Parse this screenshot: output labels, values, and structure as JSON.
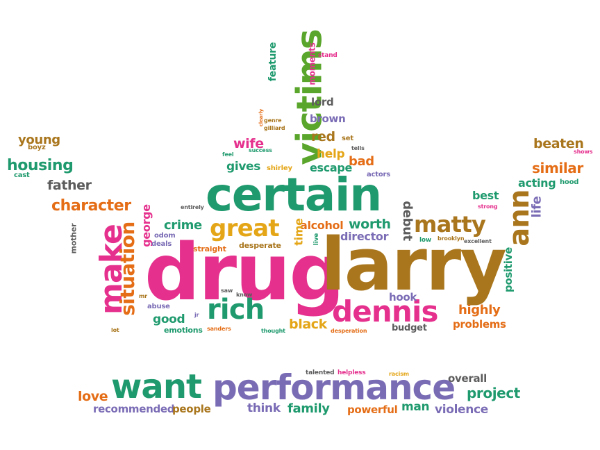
{
  "palette": {
    "pink": "#e5308d",
    "green": "#1f9a6e",
    "olive": "#a9761d",
    "gold": "#e4a516",
    "orange": "#e46d16",
    "purple": "#7a6bb5",
    "gray": "#5c5c5c",
    "lime": "#5aa52b"
  },
  "words": [
    {
      "text": "drug",
      "color": "pink"
    },
    {
      "text": "larry",
      "color": "olive"
    },
    {
      "text": "certain",
      "color": "green"
    },
    {
      "text": "performance",
      "color": "purple"
    },
    {
      "text": "want",
      "color": "green"
    },
    {
      "text": "victims",
      "color": "lime"
    },
    {
      "text": "dennis",
      "color": "pink"
    },
    {
      "text": "make",
      "color": "pink"
    },
    {
      "text": "matty",
      "color": "olive"
    },
    {
      "text": "great",
      "color": "gold"
    },
    {
      "text": "rich",
      "color": "green"
    },
    {
      "text": "situation",
      "color": "orange"
    },
    {
      "text": "ann",
      "color": "olive"
    },
    {
      "text": "character",
      "color": "orange"
    },
    {
      "text": "housing",
      "color": "green"
    },
    {
      "text": "father",
      "color": "gray"
    },
    {
      "text": "young",
      "color": "olive"
    },
    {
      "text": "beaten",
      "color": "olive"
    },
    {
      "text": "similar",
      "color": "orange"
    },
    {
      "text": "acting",
      "color": "green"
    },
    {
      "text": "best",
      "color": "green"
    },
    {
      "text": "life",
      "color": "purple"
    },
    {
      "text": "positive",
      "color": "green"
    },
    {
      "text": "highly",
      "color": "orange"
    },
    {
      "text": "problems",
      "color": "orange"
    },
    {
      "text": "hook",
      "color": "purple"
    },
    {
      "text": "budget",
      "color": "gray"
    },
    {
      "text": "black",
      "color": "gold"
    },
    {
      "text": "good",
      "color": "green"
    },
    {
      "text": "emotions",
      "color": "green"
    },
    {
      "text": "crime",
      "color": "green"
    },
    {
      "text": "george",
      "color": "pink"
    },
    {
      "text": "alcohol",
      "color": "orange"
    },
    {
      "text": "worth",
      "color": "green"
    },
    {
      "text": "director",
      "color": "purple"
    },
    {
      "text": "debut",
      "color": "gray"
    },
    {
      "text": "time",
      "color": "gold"
    },
    {
      "text": "gives",
      "color": "green"
    },
    {
      "text": "wife",
      "color": "pink"
    },
    {
      "text": "escape",
      "color": "green"
    },
    {
      "text": "help",
      "color": "gold"
    },
    {
      "text": "bad",
      "color": "orange"
    },
    {
      "text": "red",
      "color": "olive"
    },
    {
      "text": "brown",
      "color": "purple"
    },
    {
      "text": "lord",
      "color": "gray"
    },
    {
      "text": "feature",
      "color": "green"
    },
    {
      "text": "moments",
      "color": "pink"
    },
    {
      "text": "stand",
      "color": "pink"
    },
    {
      "text": "love",
      "color": "orange"
    },
    {
      "text": "recommended",
      "color": "purple"
    },
    {
      "text": "people",
      "color": "olive"
    },
    {
      "text": "think",
      "color": "purple"
    },
    {
      "text": "family",
      "color": "green"
    },
    {
      "text": "powerful",
      "color": "orange"
    },
    {
      "text": "man",
      "color": "green"
    },
    {
      "text": "violence",
      "color": "purple"
    },
    {
      "text": "project",
      "color": "green"
    },
    {
      "text": "overall",
      "color": "gray"
    },
    {
      "text": "talented",
      "color": "gray"
    },
    {
      "text": "helpless",
      "color": "pink"
    },
    {
      "text": "racism",
      "color": "gold"
    },
    {
      "text": "mother",
      "color": "gray"
    },
    {
      "text": "cast",
      "color": "green"
    },
    {
      "text": "boyz",
      "color": "olive"
    },
    {
      "text": "shows",
      "color": "pink"
    },
    {
      "text": "hood",
      "color": "green"
    },
    {
      "text": "strong",
      "color": "pink"
    },
    {
      "text": "low",
      "color": "green"
    },
    {
      "text": "brooklyn",
      "color": "olive"
    },
    {
      "text": "excellent",
      "color": "gray"
    },
    {
      "text": "actors",
      "color": "purple"
    },
    {
      "text": "tells",
      "color": "gray"
    },
    {
      "text": "set",
      "color": "olive"
    },
    {
      "text": "shirley",
      "color": "gold"
    },
    {
      "text": "feel",
      "color": "green"
    },
    {
      "text": "success",
      "color": "green"
    },
    {
      "text": "clearly",
      "color": "orange"
    },
    {
      "text": "genre",
      "color": "olive"
    },
    {
      "text": "gilliard",
      "color": "olive"
    },
    {
      "text": "entirely",
      "color": "gray"
    },
    {
      "text": "odom",
      "color": "purple"
    },
    {
      "text": "deals",
      "color": "purple"
    },
    {
      "text": "straight",
      "color": "orange"
    },
    {
      "text": "desperate",
      "color": "olive"
    },
    {
      "text": "live",
      "color": "green"
    },
    {
      "text": "saw",
      "color": "gray"
    },
    {
      "text": "know",
      "color": "gray"
    },
    {
      "text": "abuse",
      "color": "purple"
    },
    {
      "text": "mr",
      "color": "olive"
    },
    {
      "text": "jr",
      "color": "purple"
    },
    {
      "text": "lot",
      "color": "olive"
    },
    {
      "text": "sanders",
      "color": "orange"
    },
    {
      "text": "thought",
      "color": "green"
    },
    {
      "text": "desperation",
      "color": "orange"
    }
  ]
}
